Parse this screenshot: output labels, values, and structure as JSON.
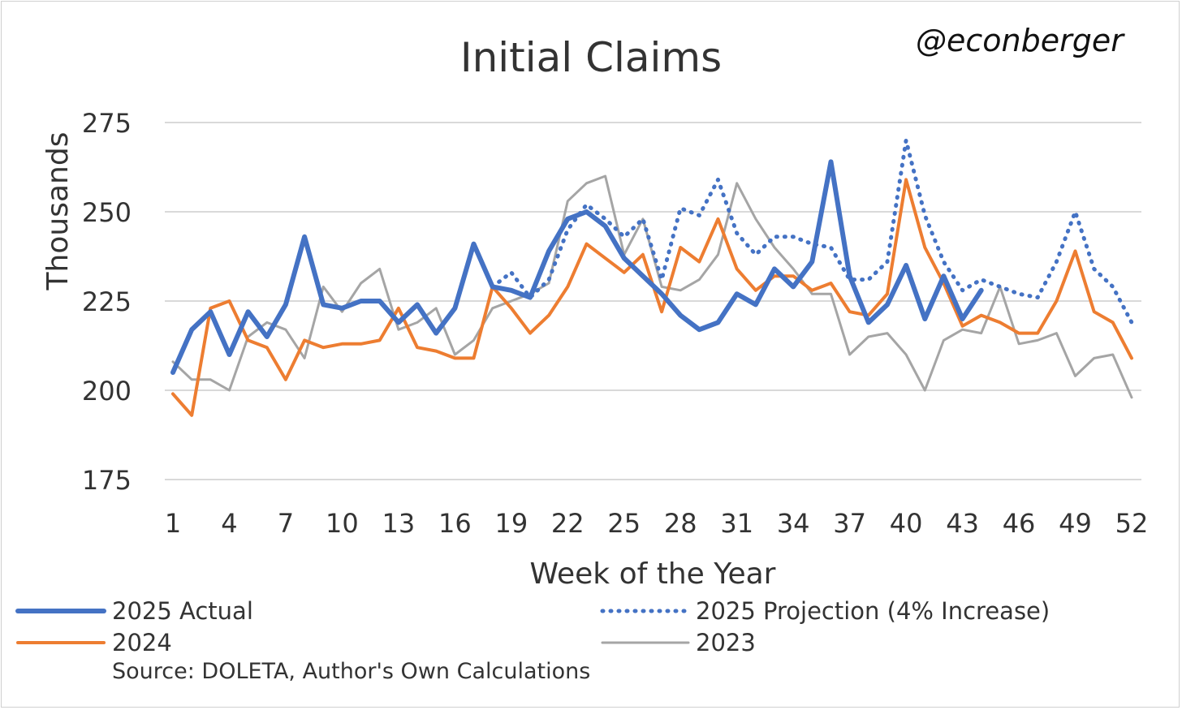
{
  "chart_data": {
    "type": "line",
    "title": "Initial Claims",
    "watermark": "@econberger",
    "xlabel": "Week of the Year",
    "ylabel": "Thousands",
    "ylim": [
      175,
      275
    ],
    "yticks": [
      175,
      200,
      225,
      250,
      275
    ],
    "xlim": [
      1,
      52
    ],
    "xticks": [
      1,
      4,
      7,
      10,
      13,
      16,
      19,
      22,
      25,
      28,
      31,
      34,
      37,
      40,
      43,
      46,
      49,
      52
    ],
    "grid": true,
    "legend_position": "bottom",
    "source": "Source: DOLETA, Author's Own Calculations",
    "series": [
      {
        "name": "2025 Actual",
        "color": "#4472C4",
        "style": "solid-thick",
        "x": [
          1,
          2,
          3,
          4,
          5,
          6,
          7,
          8,
          9,
          10,
          11,
          12,
          13,
          14,
          15,
          16,
          17,
          18,
          19,
          20,
          21,
          22,
          23,
          24,
          25,
          26,
          27,
          28,
          29,
          30,
          31,
          32,
          33,
          34,
          35,
          36,
          37,
          38,
          39,
          40,
          41,
          42,
          43,
          44
        ],
        "values": [
          205,
          217,
          222,
          210,
          222,
          215,
          224,
          243,
          224,
          223,
          225,
          225,
          219,
          224,
          216,
          223,
          241,
          229,
          228,
          226,
          239,
          248,
          250,
          246,
          237,
          232,
          227,
          221,
          217,
          219,
          227,
          224,
          234,
          229,
          236,
          264,
          232,
          219,
          224,
          235,
          220,
          232,
          220,
          228
        ]
      },
      {
        "name": "2025 Projection (4% Increase)",
        "color": "#4472C4",
        "style": "dotted",
        "x": [
          18,
          19,
          20,
          21,
          22,
          23,
          24,
          25,
          26,
          27,
          28,
          29,
          30,
          31,
          32,
          33,
          34,
          35,
          36,
          37,
          38,
          39,
          40,
          41,
          42,
          43,
          44,
          45,
          46,
          47,
          48,
          49,
          50,
          51,
          52
        ],
        "values": [
          229,
          233,
          226,
          231,
          245,
          252,
          248,
          243,
          248,
          231,
          251,
          249,
          259,
          244,
          238,
          243,
          243,
          241,
          240,
          231,
          231,
          236,
          270,
          249,
          236,
          228,
          231,
          229,
          227,
          226,
          236,
          250,
          234,
          229,
          219
        ]
      },
      {
        "name": "2024",
        "color": "#ED7D31",
        "style": "solid",
        "x": [
          1,
          2,
          3,
          4,
          5,
          6,
          7,
          8,
          9,
          10,
          11,
          12,
          13,
          14,
          15,
          16,
          17,
          18,
          19,
          20,
          21,
          22,
          23,
          24,
          25,
          26,
          27,
          28,
          29,
          30,
          31,
          32,
          33,
          34,
          35,
          36,
          37,
          38,
          39,
          40,
          41,
          42,
          43,
          44,
          45,
          46,
          47,
          48,
          49,
          50,
          51,
          52
        ],
        "values": [
          199,
          193,
          223,
          225,
          214,
          212,
          203,
          214,
          212,
          213,
          213,
          214,
          223,
          212,
          211,
          209,
          209,
          229,
          223,
          216,
          221,
          229,
          241,
          237,
          233,
          238,
          222,
          240,
          236,
          248,
          234,
          228,
          232,
          232,
          228,
          230,
          222,
          221,
          227,
          259,
          240,
          230,
          218,
          221,
          219,
          216,
          216,
          225,
          239,
          222,
          219,
          209
        ]
      },
      {
        "name": "2023",
        "color": "#A5A5A5",
        "style": "solid-thin",
        "x": [
          1,
          2,
          3,
          4,
          5,
          6,
          7,
          8,
          9,
          10,
          11,
          12,
          13,
          14,
          15,
          16,
          17,
          18,
          19,
          20,
          21,
          22,
          23,
          24,
          25,
          26,
          27,
          28,
          29,
          30,
          31,
          32,
          33,
          34,
          35,
          36,
          37,
          38,
          39,
          40,
          41,
          42,
          43,
          44,
          45,
          46,
          47,
          48,
          49,
          50,
          51,
          52
        ],
        "values": [
          208,
          203,
          203,
          200,
          215,
          219,
          217,
          209,
          229,
          222,
          230,
          234,
          217,
          219,
          223,
          210,
          214,
          223,
          225,
          227,
          230,
          253,
          258,
          260,
          238,
          248,
          229,
          228,
          231,
          238,
          258,
          248,
          240,
          234,
          227,
          227,
          210,
          215,
          216,
          210,
          200,
          214,
          217,
          216,
          229,
          213,
          214,
          216,
          204,
          209,
          210,
          198
        ]
      }
    ]
  }
}
